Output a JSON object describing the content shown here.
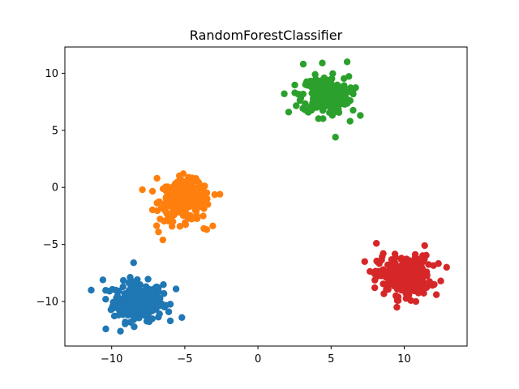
{
  "chart_data": {
    "type": "scatter",
    "title": "RandomForestClassifier",
    "xlabel": "",
    "ylabel": "",
    "xlim": [
      -13.2,
      14.3
    ],
    "ylim": [
      -13.9,
      12.3
    ],
    "x_ticks": [
      -10,
      -5,
      0,
      5,
      10
    ],
    "y_ticks": [
      -10,
      -5,
      0,
      5,
      10
    ],
    "grid": false,
    "legend": "none",
    "series": [
      {
        "color": "#1f77b4",
        "center": [
          -8.2,
          -10.0
        ],
        "spread": [
          0.85,
          0.85
        ],
        "count": 260,
        "points": [
          [
            -11.4,
            -9.0
          ],
          [
            -10.4,
            -12.4
          ],
          [
            -9.4,
            -12.6
          ],
          [
            -8.5,
            -6.6
          ],
          [
            -5.2,
            -11.4
          ],
          [
            -5.6,
            -8.9
          ],
          [
            -10.6,
            -8.1
          ],
          [
            -6.1,
            -10.9
          ]
        ]
      },
      {
        "color": "#ff7f0e",
        "center": [
          -5.0,
          -1.2
        ],
        "spread": [
          0.85,
          0.85
        ],
        "count": 260,
        "points": [
          [
            -7.9,
            -0.2
          ],
          [
            -6.5,
            -4.6
          ],
          [
            -5.1,
            1.2
          ],
          [
            -3.7,
            -3.6
          ],
          [
            -3.5,
            -3.7
          ],
          [
            -2.6,
            -0.6
          ],
          [
            -6.8,
            -3.9
          ],
          [
            -6.9,
            0.8
          ]
        ]
      },
      {
        "color": "#2ca02c",
        "center": [
          4.6,
          8.1
        ],
        "spread": [
          0.8,
          0.8
        ],
        "count": 260,
        "points": [
          [
            1.8,
            8.2
          ],
          [
            2.1,
            6.6
          ],
          [
            3.1,
            10.8
          ],
          [
            4.4,
            10.9
          ],
          [
            5.3,
            4.4
          ],
          [
            6.1,
            11.0
          ],
          [
            7.0,
            6.3
          ],
          [
            6.3,
            5.8
          ]
        ]
      },
      {
        "color": "#d62728",
        "center": [
          10.0,
          -7.7
        ],
        "spread": [
          0.9,
          0.85
        ],
        "count": 260,
        "points": [
          [
            8.1,
            -4.9
          ],
          [
            7.3,
            -6.5
          ],
          [
            11.4,
            -5.1
          ],
          [
            12.9,
            -7.0
          ],
          [
            12.5,
            -8.2
          ],
          [
            9.5,
            -10.5
          ],
          [
            10.8,
            -10.0
          ],
          [
            12.2,
            -9.4
          ]
        ]
      }
    ]
  }
}
